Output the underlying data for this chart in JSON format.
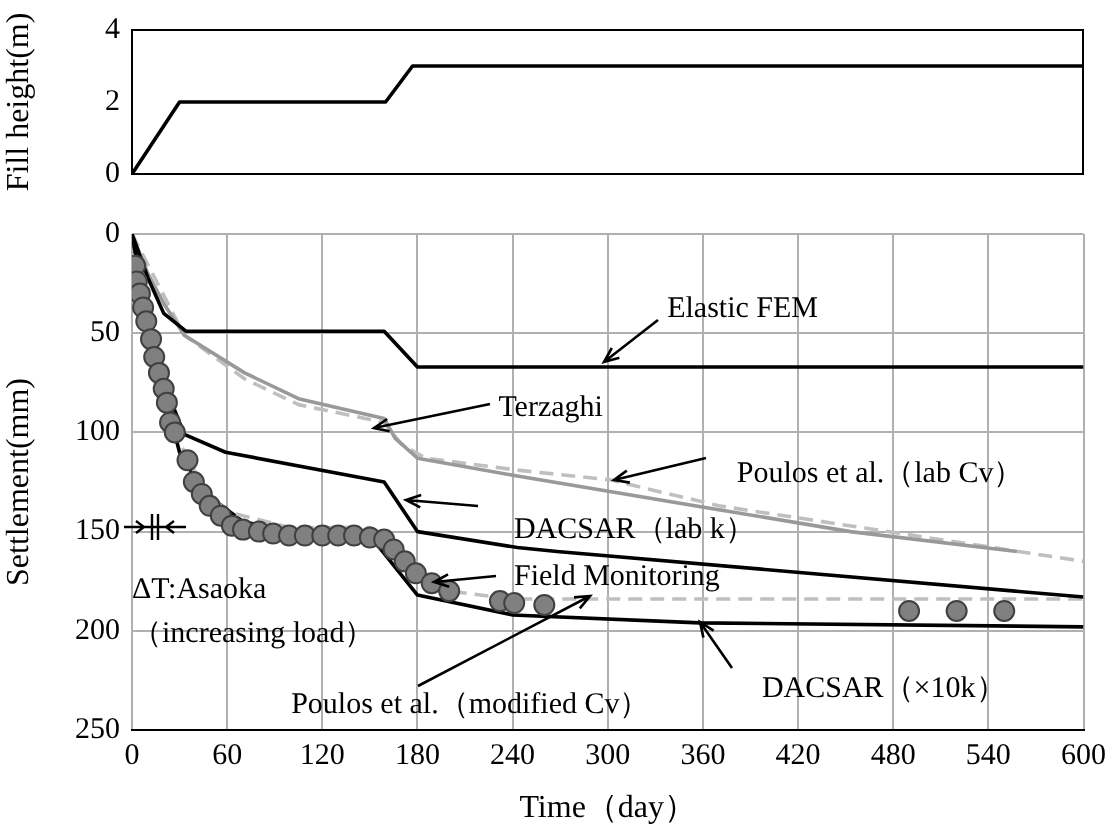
{
  "chart_data": [
    {
      "type": "line",
      "ylabel": "Fill height(m)",
      "x": [
        0,
        30,
        160,
        177,
        600
      ],
      "series": [
        {
          "color": "#000000",
          "values": [
            0,
            2,
            2,
            3,
            3
          ]
        }
      ],
      "xlim": [
        0,
        600
      ],
      "ylim": [
        0,
        4
      ],
      "yticks": [
        0,
        2,
        4
      ],
      "tick_labels": "y"
    },
    {
      "type": "line",
      "xlabel": "Time（day）",
      "ylabel": "Settlement(mm)",
      "xlim": [
        0,
        600
      ],
      "ylim": [
        250,
        0
      ],
      "xticks": [
        0,
        60,
        120,
        180,
        240,
        300,
        360,
        420,
        480,
        540,
        600
      ],
      "yticks": [
        0,
        50,
        100,
        150,
        200,
        250
      ],
      "grid": true,
      "series": [
        {
          "color": "#000000",
          "x": [
            0,
            10,
            20,
            34,
            159,
            180,
            600
          ],
          "values": [
            0,
            22,
            40,
            49,
            49,
            67,
            67
          ]
        },
        {
          "color": "#999999",
          "x": [
            0,
            10,
            20,
            33,
            71,
            105,
            159,
            166,
            180,
            243,
            370,
            453,
            558
          ],
          "values": [
            0,
            20,
            35,
            51,
            70,
            83,
            93,
            103,
            113,
            122,
            139,
            150,
            160
          ]
        },
        {
          "color": "#bfbfbf",
          "line_style": "dashed",
          "x": [
            0,
            33,
            71,
            105,
            159,
            170,
            185,
            243,
            302,
            370,
            600
          ],
          "values": [
            0,
            51,
            73,
            86,
            95,
            106,
            113,
            119,
            124,
            137,
            165
          ]
        },
        {
          "color": "#000000",
          "x": [
            0,
            10,
            20,
            33,
            59,
            159,
            180,
            243,
            268,
            600
          ],
          "values": [
            0,
            45,
            75,
            101,
            110,
            125,
            150,
            158,
            160,
            183
          ]
        },
        {
          "color": "#bfbfbf",
          "line_style": "dashed",
          "x": [
            0,
            10,
            20,
            30,
            45,
            60,
            100,
            150,
            160,
            180,
            200,
            240,
            300,
            600
          ],
          "values": [
            0,
            40,
            75,
            105,
            128,
            140,
            148,
            148,
            152,
            170,
            180,
            184,
            184,
            184
          ]
        },
        {
          "color": "#000000",
          "x": [
            0,
            10,
            20,
            30,
            45,
            70,
            100,
            150,
            163,
            180,
            240,
            358,
            600
          ],
          "values": [
            0,
            45,
            80,
            110,
            130,
            145,
            150,
            152,
            165,
            182,
            192,
            196,
            198
          ]
        },
        {
          "type": "scatter",
          "marker": "circle",
          "color": "#808080",
          "x": [
            2,
            3,
            5,
            7,
            9,
            12,
            14,
            17,
            20,
            22,
            24,
            27,
            35,
            39,
            44,
            49,
            56,
            63,
            70,
            80,
            89,
            99,
            109,
            120,
            130,
            140,
            150,
            159,
            165,
            172,
            179,
            189,
            200,
            232,
            241,
            260,
            490,
            520,
            550
          ],
          "values": [
            16,
            24,
            30,
            37,
            44,
            53,
            62,
            70,
            78,
            85,
            95,
            100,
            114,
            125,
            131,
            137,
            142,
            147,
            149,
            150,
            151,
            152,
            152,
            152,
            152,
            152,
            153,
            154,
            159,
            165,
            171,
            176,
            180,
            185,
            186,
            187,
            190,
            190,
            190
          ]
        }
      ],
      "annotations": [
        {
          "text": "Elastic FEM",
          "x": 298,
          "y": 65
        },
        {
          "text": "Terzaghi",
          "x": 153,
          "y": 98
        },
        {
          "text": "Poulos et al.（lab Cv）",
          "x": 304,
          "y": 124
        },
        {
          "text": "DACSAR（lab k）",
          "x": 173,
          "y": 134
        },
        {
          "text": "Field Monitoring",
          "x": 191,
          "y": 175
        },
        {
          "text": "Poulos et al.（modified Cv）",
          "x": 289,
          "y": 182
        },
        {
          "text": "DACSAR（×10k）",
          "x": 358,
          "y": 196
        },
        "ΔT:Asaoka",
        "（increasing load）"
      ]
    }
  ]
}
